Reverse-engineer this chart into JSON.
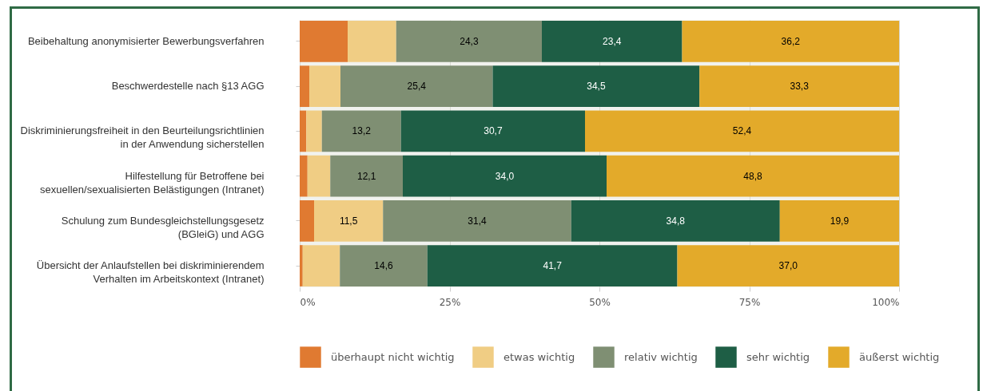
{
  "chart_data": {
    "type": "bar",
    "orientation": "horizontal",
    "stacked": true,
    "categories": [
      "Beibehaltung anonymisierter Bewerbungsverfahren",
      "Beschwerdestelle nach §13 AGG",
      "Diskriminierungsfreiheit in den Beurteilungsrichtlinien\nin der Anwendung sicherstellen",
      "Hilfestellung für Betroffene bei\nsexuellen/sexualisierten Belästigungen (Intranet)",
      "Schulung zum Bundesgleichstellungsgesetz\n(BGleiG) und AGG",
      "Übersicht der Anlaufstellen bei diskriminierendem\nVerhalten im Arbeitskontext (Intranet)"
    ],
    "series": [
      {
        "name": "überhaupt nicht wichtig",
        "color": "#e07a31",
        "values": [
          8.0,
          1.6,
          1.1,
          1.3,
          2.4,
          0.5
        ],
        "value_labels": [
          null,
          null,
          null,
          null,
          null,
          null
        ]
      },
      {
        "name": "etwas wichtig",
        "color": "#f0cd84",
        "values": [
          8.1,
          5.2,
          2.6,
          3.8,
          11.5,
          6.2
        ],
        "value_labels": [
          null,
          null,
          null,
          null,
          "11,5",
          null
        ]
      },
      {
        "name": "relativ wichtig",
        "color": "#7f8f73",
        "values": [
          24.3,
          25.4,
          13.2,
          12.1,
          31.4,
          14.6
        ],
        "value_labels": [
          "24,3",
          "25,4",
          "13,2",
          "12,1",
          "31,4",
          "14,6"
        ]
      },
      {
        "name": "sehr wichtig",
        "color": "#1e5e45",
        "values": [
          23.4,
          34.5,
          30.7,
          34.0,
          34.8,
          41.7
        ],
        "value_labels": [
          "23,4",
          "34,5",
          "30,7",
          "34,0",
          "34,8",
          "41,7"
        ]
      },
      {
        "name": "äußerst wichtig",
        "color": "#e3aa2a",
        "values": [
          36.2,
          33.3,
          52.4,
          48.8,
          19.9,
          37.0
        ],
        "value_labels": [
          "36,2",
          "33,3",
          "52,4",
          "48,8",
          "19,9",
          "37,0"
        ]
      }
    ],
    "xlim": [
      0,
      100
    ],
    "xticks": [
      {
        "value": 0,
        "label": "0%"
      },
      {
        "value": 25,
        "label": "25%"
      },
      {
        "value": 50,
        "label": "50%"
      },
      {
        "value": 75,
        "label": "75%"
      },
      {
        "value": 100,
        "label": "100%"
      }
    ],
    "grid": "x",
    "legend": "bottom right"
  }
}
